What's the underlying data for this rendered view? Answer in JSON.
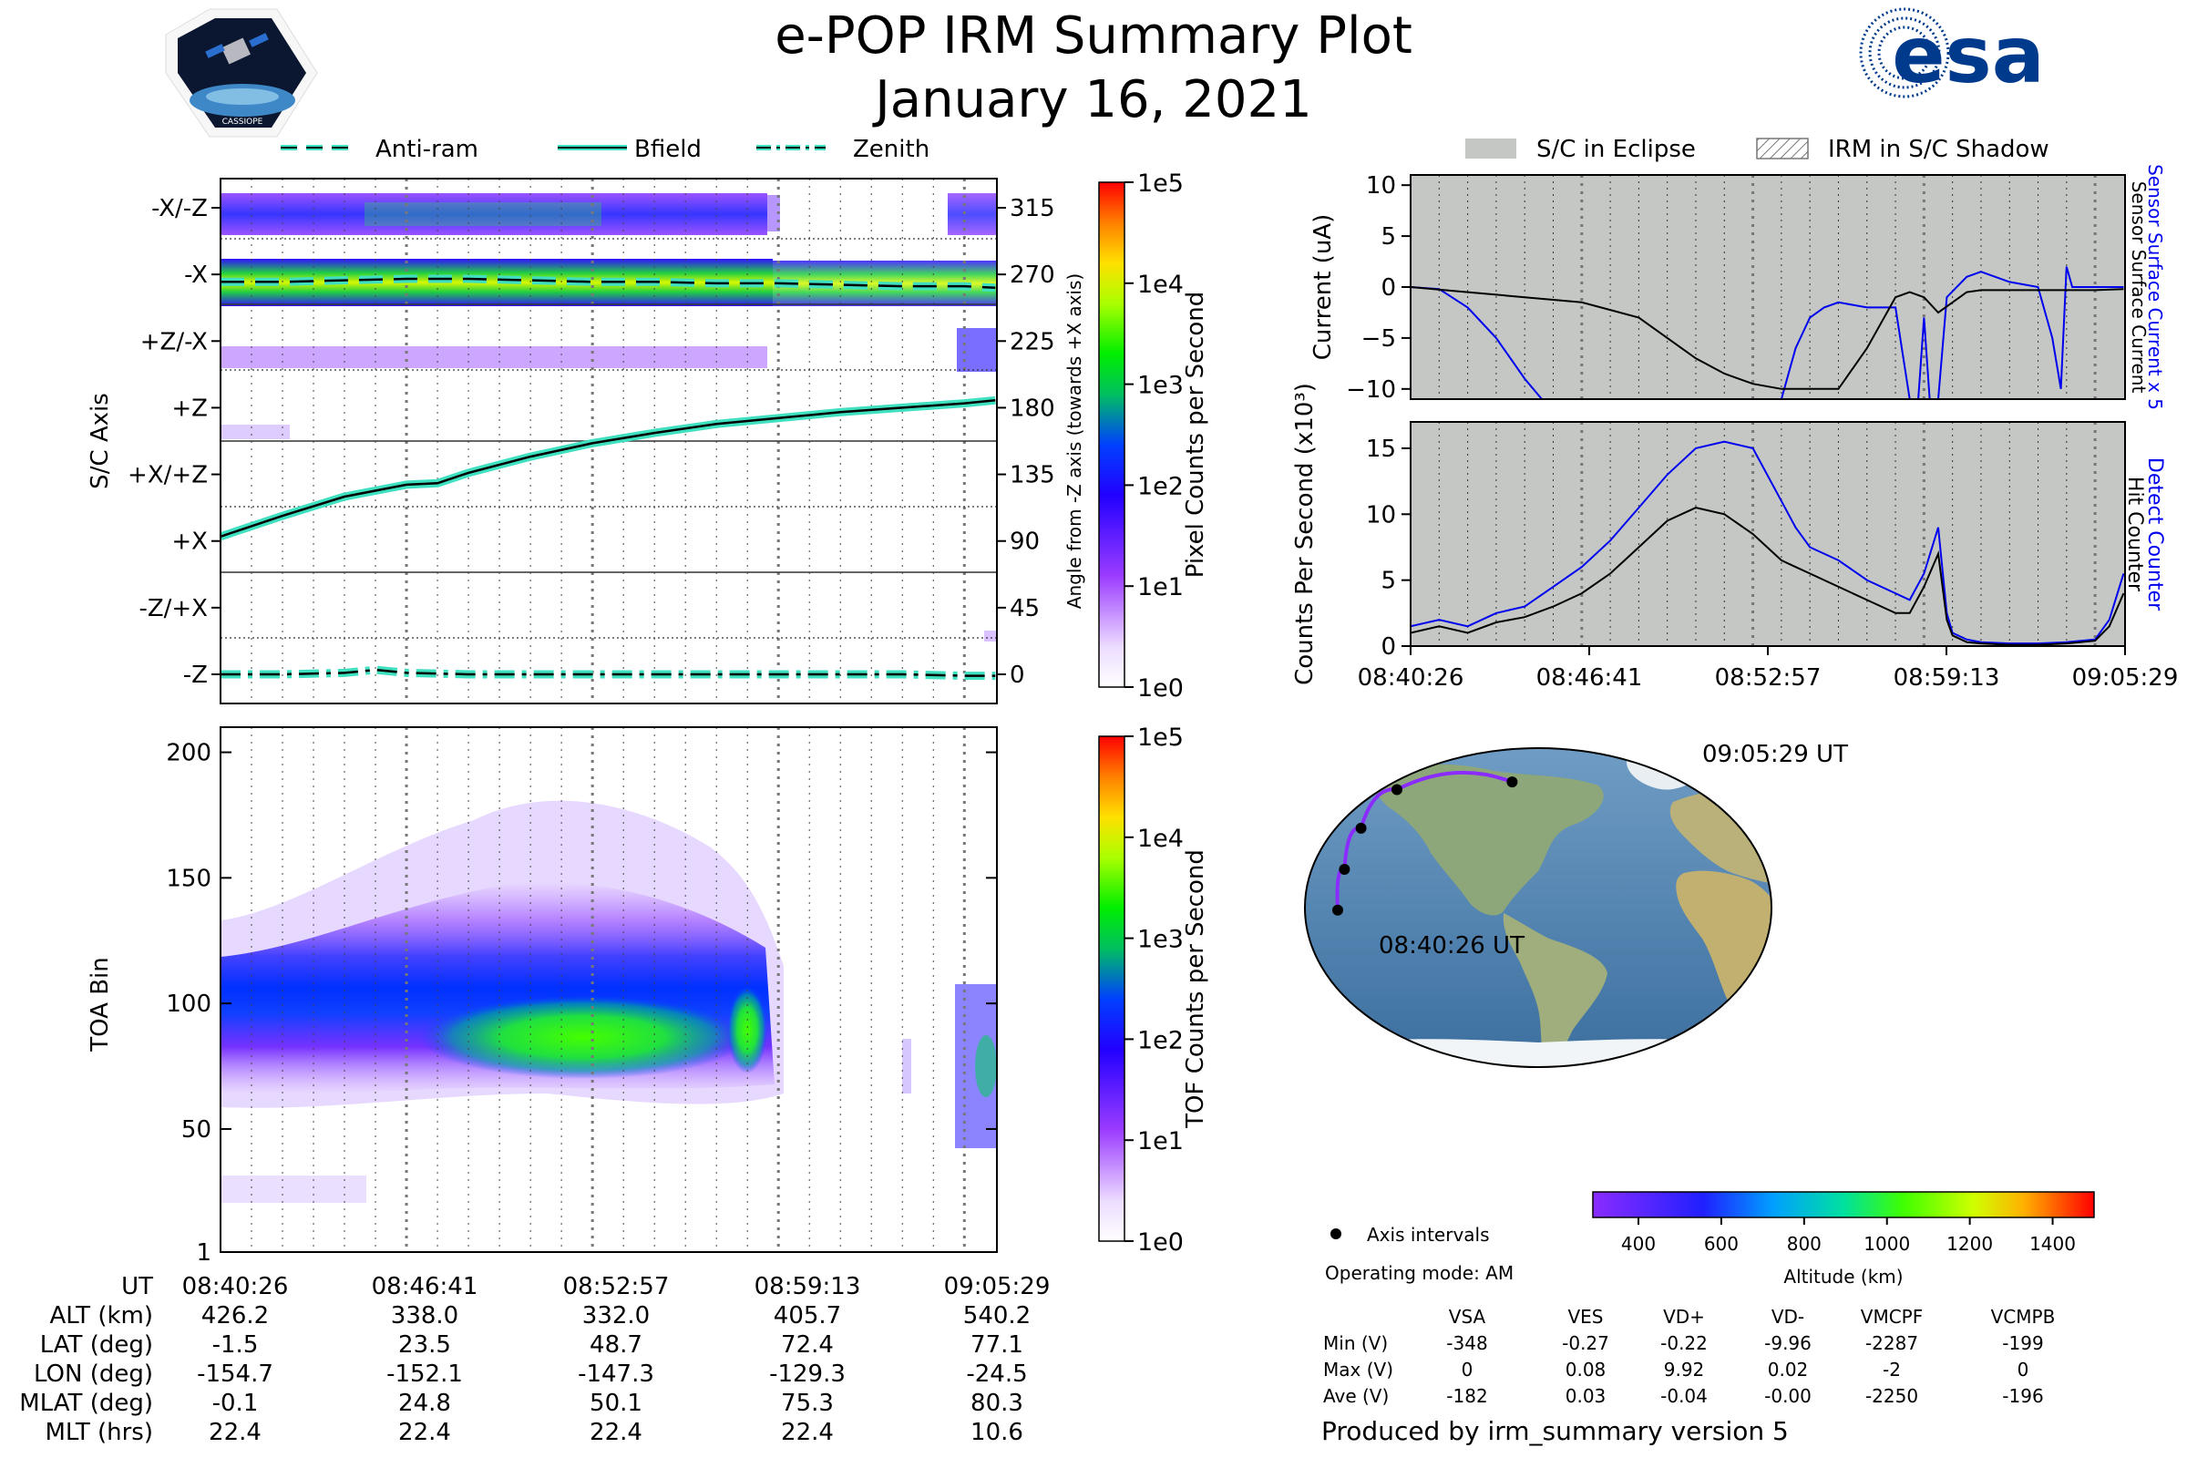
{
  "header": {
    "title": "e-POP IRM Summary Plot",
    "date": "January 16, 2021",
    "esa_logo_text": "esa",
    "cassiope_logo_text": "CASSIOPE"
  },
  "colors": {
    "trace_teal": "#3fe0c0",
    "counter_blue": "#0000ee",
    "eclipse_grey": "#c4c7c4",
    "esa_blue": "#003a8c"
  },
  "legend_top_left": [
    "Anti-ram",
    "Bfield",
    "Zenith"
  ],
  "legend_top_right": [
    "S/C in Eclipse",
    "IRM in S/C Shadow"
  ],
  "time_ticks": [
    "08:40:26",
    "08:46:41",
    "08:52:57",
    "08:59:13",
    "09:05:29"
  ],
  "chart_data": [
    {
      "id": "sc-axis-panel",
      "type": "heatmap",
      "ylabel": "S/C Axis",
      "y_categories": [
        "-X/-Z",
        "-X",
        "+Z/-X",
        "+Z",
        "+X/+Z",
        "+X",
        "-Z/+X",
        "-Z"
      ],
      "right_ticks": [
        "315",
        "270",
        "225",
        "180",
        "135",
        "90",
        "45",
        "0"
      ],
      "right_label": "Angle from -Z axis (towards +X axis)",
      "colorbar": {
        "label": "Pixel Counts per Second",
        "ticks": [
          "1e5",
          "1e4",
          "1e3",
          "1e2",
          "1e1",
          "1e0"
        ]
      },
      "series": [
        {
          "name": "Bfield",
          "x_min": [
            0,
            2,
            4,
            6,
            7,
            8,
            10,
            12,
            14,
            16,
            18,
            20,
            22,
            24,
            25
          ],
          "y_deg": [
            93,
            107,
            120,
            128,
            129,
            136,
            147,
            156,
            163,
            169,
            173,
            177,
            180,
            183,
            185
          ]
        },
        {
          "name": "Anti-ram",
          "x_min": [
            0,
            2,
            4,
            6,
            8,
            10,
            12,
            14,
            16,
            18,
            20,
            22,
            24,
            25
          ],
          "y_deg": [
            265,
            265,
            266,
            267,
            267,
            266,
            265,
            265,
            264,
            264,
            263,
            262,
            262,
            261
          ]
        },
        {
          "name": "Zenith",
          "x_min": [
            0,
            2,
            4,
            5,
            6,
            8,
            10,
            12,
            14,
            16,
            18,
            20,
            22,
            24,
            25
          ],
          "y_deg": [
            0,
            0,
            1,
            3,
            1,
            0,
            0,
            0,
            0,
            0,
            0,
            0,
            0,
            -1,
            -1
          ]
        }
      ]
    },
    {
      "id": "toa-panel",
      "type": "heatmap",
      "ylabel": "TOA Bin",
      "yticks": [
        "200",
        "150",
        "100",
        "50",
        "1"
      ],
      "ylim": [
        1,
        210
      ],
      "colorbar": {
        "label": "TOF Counts per Second",
        "ticks": [
          "1e5",
          "1e4",
          "1e3",
          "1e2",
          "1e1",
          "1e0"
        ]
      }
    },
    {
      "id": "current-panel",
      "type": "line",
      "ylabel": "Current (uA)",
      "yticks": [
        "10",
        "5",
        "0",
        "−5",
        "−10"
      ],
      "ylim": [
        -11,
        11
      ],
      "right_labels": [
        "Sensor Surface Current x 5",
        "Sensor Surface Current"
      ],
      "series": [
        {
          "name": "Sensor Surface Current",
          "x_min": [
            0,
            2,
            4,
            6,
            8,
            9,
            10,
            11,
            12,
            13,
            14,
            15,
            16,
            17,
            17.5,
            18,
            18.5,
            19,
            19.5,
            20,
            21,
            22,
            23,
            24,
            25
          ],
          "y": [
            0,
            -0.5,
            -1,
            -1.5,
            -3,
            -5,
            -7,
            -8.5,
            -9.5,
            -10,
            -10,
            -10,
            -6,
            -1,
            -0.5,
            -1,
            -2.5,
            -1.5,
            -0.5,
            -0.3,
            -0.3,
            -0.3,
            -0.3,
            -0.3,
            -0.2
          ]
        },
        {
          "name": "Sensor Surface Current x 5",
          "x_min": [
            0,
            1,
            2,
            3,
            4,
            4.6,
            13,
            13.5,
            14,
            14.5,
            15,
            16,
            17,
            17.5,
            17.8,
            18,
            18.2,
            18.5,
            18.8,
            19.5,
            20,
            21,
            22,
            22.5,
            22.8,
            23,
            23.2,
            24,
            25
          ],
          "y": [
            0,
            -0.2,
            -2,
            -5,
            -9,
            -11,
            -11,
            -6,
            -3,
            -2,
            -1.5,
            -2,
            -2,
            -11,
            -11,
            -3,
            -11,
            -11,
            -1,
            1,
            1.5,
            0.5,
            0,
            -5,
            -10,
            2,
            0,
            0,
            0
          ]
        }
      ]
    },
    {
      "id": "counts-panel",
      "type": "line",
      "ylabel": "Counts Per Second (x10³)",
      "yticks": [
        "15",
        "10",
        "5",
        "0"
      ],
      "ylim": [
        0,
        17
      ],
      "right_labels": [
        "Detect Counter",
        "Hit Counter"
      ],
      "series": [
        {
          "name": "Detect Counter",
          "x_min": [
            0,
            1,
            2,
            3,
            4,
            5,
            6,
            7,
            8,
            9,
            10,
            11,
            12,
            13,
            13.5,
            14,
            15,
            16,
            17,
            17.5,
            18,
            18.5,
            18.8,
            19,
            19.5,
            20,
            21,
            22,
            23,
            24,
            24.5,
            25
          ],
          "y": [
            1.5,
            2.0,
            1.5,
            2.5,
            3.0,
            4.5,
            6.0,
            8.0,
            10.5,
            13.0,
            15.0,
            15.5,
            15.0,
            11.0,
            9.0,
            7.5,
            6.5,
            5.0,
            4.0,
            3.5,
            5.5,
            9.0,
            2.5,
            1.0,
            0.5,
            0.3,
            0.2,
            0.2,
            0.3,
            0.5,
            2.0,
            5.5
          ]
        },
        {
          "name": "Hit Counter",
          "x_min": [
            0,
            1,
            2,
            3,
            4,
            5,
            6,
            7,
            8,
            9,
            10,
            11,
            12,
            13,
            13.5,
            14,
            15,
            16,
            17,
            17.5,
            18,
            18.5,
            18.8,
            19,
            19.5,
            20,
            21,
            22,
            23,
            24,
            24.5,
            25
          ],
          "y": [
            1.0,
            1.5,
            1.0,
            1.8,
            2.2,
            3.0,
            4.0,
            5.5,
            7.5,
            9.5,
            10.5,
            10.0,
            8.5,
            6.5,
            6.0,
            5.5,
            4.5,
            3.5,
            2.5,
            2.5,
            4.5,
            7.0,
            2.0,
            0.8,
            0.3,
            0.2,
            0.1,
            0.1,
            0.2,
            0.4,
            1.5,
            4.0
          ]
        }
      ]
    }
  ],
  "map": {
    "start_label": "08:40:26 UT",
    "end_label": "09:05:29 UT",
    "legend_axis_intervals": "Axis intervals",
    "operating_mode": "Operating mode: AM",
    "altitude_ticks": [
      "400",
      "600",
      "800",
      "1000",
      "1200",
      "1400"
    ],
    "altitude_label": "Altitude (km)",
    "track": [
      [
        -154.7,
        -1.5
      ],
      [
        -152.1,
        23.5
      ],
      [
        -147.3,
        48.7
      ],
      [
        -129.3,
        72.4
      ],
      [
        -24.5,
        77.1
      ]
    ]
  },
  "ephemeris": {
    "rows": [
      {
        "label": "UT",
        "values": [
          "08:40:26",
          "08:46:41",
          "08:52:57",
          "08:59:13",
          "09:05:29"
        ]
      },
      {
        "label": "ALT (km)",
        "values": [
          "426.2",
          "338.0",
          "332.0",
          "405.7",
          "540.2"
        ]
      },
      {
        "label": "LAT (deg)",
        "values": [
          "-1.5",
          "23.5",
          "48.7",
          "72.4",
          "77.1"
        ]
      },
      {
        "label": "LON (deg)",
        "values": [
          "-154.7",
          "-152.1",
          "-147.3",
          "-129.3",
          "-24.5"
        ]
      },
      {
        "label": "MLAT (deg)",
        "values": [
          "-0.1",
          "24.8",
          "50.1",
          "75.3",
          "80.3"
        ]
      },
      {
        "label": "MLT (hrs)",
        "values": [
          "22.4",
          "22.4",
          "22.4",
          "22.4",
          "10.6"
        ]
      }
    ]
  },
  "voltage_table": {
    "headers": [
      "VSA",
      "VES",
      "VD+",
      "VD-",
      "VMCPF",
      "VCMPB"
    ],
    "rows": [
      {
        "label": "Min (V)",
        "values": [
          "-348",
          "-0.27",
          "-0.22",
          "-9.96",
          "-2287",
          "-199"
        ]
      },
      {
        "label": "Max (V)",
        "values": [
          "0",
          "0.08",
          "9.92",
          "0.02",
          "-2",
          "0"
        ]
      },
      {
        "label": "Ave (V)",
        "values": [
          "-182",
          "0.03",
          "-0.04",
          "-0.00",
          "-2250",
          "-196"
        ]
      }
    ]
  },
  "footer": "Produced by irm_summary version 5"
}
